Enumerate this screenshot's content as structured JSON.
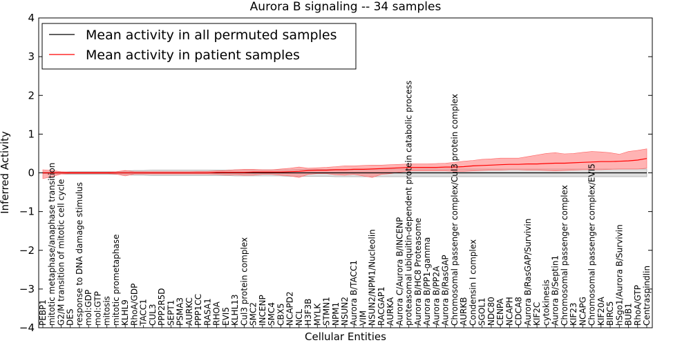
{
  "chart_data": {
    "type": "line",
    "title": "Aurora B signaling -- 34 samples",
    "xlabel": "Cellular Entities",
    "ylabel": "Inferred Activity",
    "ylim": [
      -4,
      4
    ],
    "yticks": [
      "4",
      "3",
      "2",
      "1",
      "0",
      "−1",
      "−2",
      "−3",
      "−4"
    ],
    "ytick_values": [
      4,
      3,
      2,
      1,
      0,
      -1,
      -2,
      -3,
      -4
    ],
    "grid": false,
    "legend_position": "top-left",
    "colors": {
      "permuted": "#000000",
      "patient": "#ff0000",
      "patient_band": "#ff8080",
      "permuted_band": "#bfbfbf"
    },
    "categories": [
      "PEBP1",
      "mitotic metaphase/anaphase transition",
      "G2/M transition of mitotic cell cycle",
      "DES",
      "response to DNA damage stimulus",
      "mol:GDP",
      "mol:GTP",
      "mitosis",
      "mitotic prometaphase",
      "KLHL9",
      "RhoA/GDP",
      "TACC1",
      "CUL3",
      "PPP2R5D",
      "SEPT1",
      "PSMA3",
      "AURKC",
      "PPP1CC",
      "RASA1",
      "RHOA",
      "EVI5",
      "KLHL13",
      "Cul3 protein complex",
      "SMC2",
      "INCENP",
      "SMC4",
      "CBX5",
      "NCAPD2",
      "NCL",
      "H3F3B",
      "MYLK",
      "STMN1",
      "NPM1",
      "NSUN2",
      "Aurora B/TACC1",
      "VIM",
      "NSUN2/NPM1/Nucleolin",
      "RACGAP1",
      "AURKA",
      "Aurora C/Aurora B/INCENP",
      "proteasomal ubiquitin-dependent protein catabolic process",
      "Aurora B/HC8 Proteasome",
      "Aurora B/PP1-gamma",
      "Aurora B/PP2A",
      "Aurora B/RasGAP",
      "Chromosomal passenger complex/Cul3 protein complex",
      "AURKB",
      "Condensin I complex",
      "SGOL1",
      "NDC80",
      "CENPA",
      "NCAPH",
      "CDCA8",
      "Aurora B/RasGAP/Survivin",
      "KIF2C",
      "cytokinesis",
      "Aurora B/Septin1",
      "Chromosomal passenger complex",
      "KIF23",
      "NCAPG",
      "Chromosomal passenger complex/EVI5",
      "KIF20A",
      "BIRC5",
      "hSgo1/Aurora B/Survivin",
      "BUB1",
      "RhoA/GTP",
      "Centraspindlin"
    ],
    "series": [
      {
        "name": "Mean activity in all permuted samples",
        "values": [
          0,
          0,
          0,
          0,
          0,
          0,
          0,
          0,
          0,
          0,
          0,
          0,
          0,
          0,
          0,
          0,
          0,
          0,
          0,
          0,
          0,
          0,
          0,
          0,
          0,
          0,
          0,
          0,
          0,
          0,
          0,
          0,
          0,
          0,
          0,
          0,
          0,
          0,
          0,
          0,
          0,
          0,
          0,
          0,
          0,
          0,
          0,
          0,
          0,
          0,
          0,
          0,
          0,
          0,
          0,
          0,
          0,
          0,
          0,
          0,
          0,
          0,
          0,
          0,
          0,
          0,
          0
        ],
        "band_upper": [
          0.02,
          0.02,
          0.02,
          0.03,
          0.03,
          0.03,
          0.03,
          0.03,
          0.03,
          0.05,
          0.06,
          0.06,
          0.07,
          0.07,
          0.07,
          0.07,
          0.07,
          0.07,
          0.07,
          0.07,
          0.07,
          0.08,
          0.08,
          0.08,
          0.08,
          0.08,
          0.08,
          0.08,
          0.09,
          0.09,
          0.09,
          0.09,
          0.09,
          0.09,
          0.1,
          0.1,
          0.1,
          0.1,
          0.1,
          0.1,
          0.1,
          0.1,
          0.1,
          0.1,
          0.1,
          0.1,
          0.1,
          0.1,
          0.1,
          0.1,
          0.1,
          0.1,
          0.1,
          0.1,
          0.1,
          0.1,
          0.1,
          0.1,
          0.1,
          0.1,
          0.1,
          0.1,
          0.1,
          0.1,
          0.1,
          0.1,
          0.1
        ],
        "band_lower": [
          -0.02,
          -0.03,
          -0.03,
          -0.04,
          -0.04,
          -0.04,
          -0.04,
          -0.04,
          -0.04,
          -0.05,
          -0.06,
          -0.06,
          -0.07,
          -0.07,
          -0.07,
          -0.07,
          -0.07,
          -0.07,
          -0.07,
          -0.07,
          -0.07,
          -0.08,
          -0.08,
          -0.08,
          -0.08,
          -0.08,
          -0.08,
          -0.09,
          -0.09,
          -0.09,
          -0.09,
          -0.09,
          -0.1,
          -0.1,
          -0.1,
          -0.1,
          -0.1,
          -0.1,
          -0.1,
          -0.1,
          -0.1,
          -0.1,
          -0.1,
          -0.1,
          -0.1,
          -0.1,
          -0.1,
          -0.1,
          -0.1,
          -0.1,
          -0.1,
          -0.1,
          -0.1,
          -0.1,
          -0.1,
          -0.1,
          -0.1,
          -0.1,
          -0.1,
          -0.1,
          -0.1,
          -0.1,
          -0.1,
          -0.1,
          -0.1,
          -0.1,
          -0.1
        ]
      },
      {
        "name": "Mean activity in patient samples",
        "values": [
          0,
          0,
          0,
          0,
          0,
          0,
          0,
          0,
          0,
          0,
          0,
          0,
          0,
          0,
          0,
          0,
          0,
          0,
          0,
          0.01,
          0.01,
          0.01,
          0.01,
          0.02,
          0.02,
          0.02,
          0.02,
          0.03,
          0.04,
          0.06,
          0.07,
          0.07,
          0.08,
          0.08,
          0.09,
          0.09,
          0.1,
          0.11,
          0.12,
          0.13,
          0.14,
          0.14,
          0.14,
          0.14,
          0.15,
          0.15,
          0.16,
          0.18,
          0.19,
          0.2,
          0.21,
          0.22,
          0.22,
          0.23,
          0.23,
          0.24,
          0.25,
          0.25,
          0.26,
          0.27,
          0.28,
          0.29,
          0.29,
          0.3,
          0.31,
          0.33,
          0.37
        ],
        "band_upper": [
          0.08,
          0.06,
          0.03,
          0.02,
          0.02,
          0.02,
          0.02,
          0.02,
          0.03,
          0.06,
          0.03,
          0.03,
          0.03,
          0.03,
          0.03,
          0.03,
          0.03,
          0.04,
          0.04,
          0.05,
          0.06,
          0.08,
          0.09,
          0.09,
          0.08,
          0.08,
          0.1,
          0.12,
          0.15,
          0.12,
          0.13,
          0.14,
          0.16,
          0.18,
          0.18,
          0.19,
          0.2,
          0.2,
          0.21,
          0.22,
          0.23,
          0.23,
          0.23,
          0.24,
          0.25,
          0.27,
          0.3,
          0.32,
          0.35,
          0.36,
          0.38,
          0.38,
          0.38,
          0.42,
          0.46,
          0.5,
          0.52,
          0.49,
          0.5,
          0.53,
          0.55,
          0.54,
          0.52,
          0.48,
          0.55,
          0.58,
          0.62
        ],
        "band_lower": [
          -0.15,
          -0.1,
          -0.03,
          -0.02,
          -0.02,
          -0.02,
          -0.02,
          -0.02,
          -0.03,
          -0.08,
          -0.03,
          -0.03,
          -0.03,
          -0.03,
          -0.03,
          -0.03,
          -0.03,
          -0.03,
          -0.03,
          -0.04,
          -0.05,
          -0.05,
          -0.06,
          -0.06,
          -0.04,
          -0.04,
          -0.06,
          -0.08,
          -0.12,
          -0.04,
          -0.02,
          -0.02,
          -0.05,
          -0.06,
          -0.04,
          -0.08,
          -0.12,
          -0.04,
          -0.02,
          0.02,
          0.05,
          0.05,
          0.05,
          0.05,
          0.05,
          0.04,
          0.04,
          0.05,
          0.06,
          0.07,
          0.07,
          0.08,
          0.08,
          0.07,
          0.07,
          0.06,
          0.05,
          0.06,
          0.07,
          0.08,
          0.08,
          0.08,
          0.09,
          0.1,
          0.1,
          0.1,
          0.12
        ]
      }
    ]
  }
}
